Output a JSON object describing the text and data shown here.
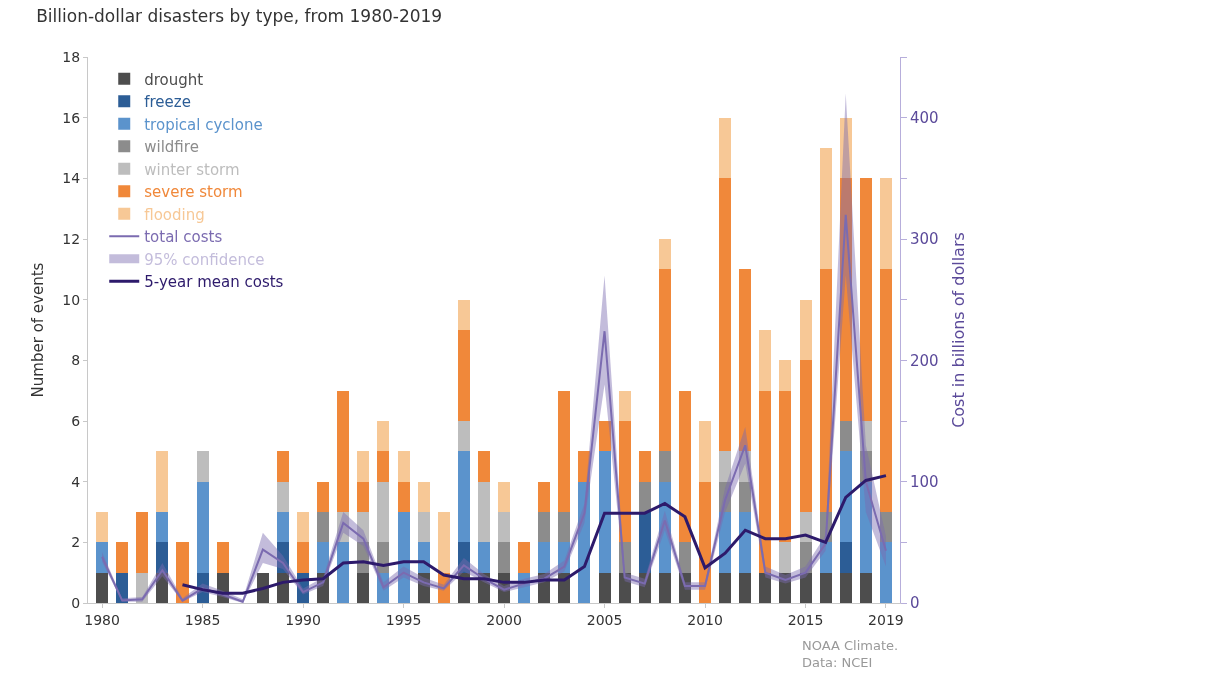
{
  "chart_data": {
    "type": "bar",
    "stacked": true,
    "title": "Billion-dollar disasters by type, from 1980-2019",
    "ylabel": "Number of events",
    "y2label": "Cost in billions of dollars",
    "x": [
      1980,
      1981,
      1982,
      1983,
      1984,
      1985,
      1986,
      1987,
      1988,
      1989,
      1990,
      1991,
      1992,
      1993,
      1994,
      1995,
      1996,
      1997,
      1998,
      1999,
      2000,
      2001,
      2002,
      2003,
      2004,
      2005,
      2006,
      2007,
      2008,
      2009,
      2010,
      2011,
      2012,
      2013,
      2014,
      2015,
      2016,
      2017,
      2018,
      2019
    ],
    "xlim": [
      1979.3,
      2019.7
    ],
    "xticks": [
      1980,
      1985,
      1990,
      1995,
      2000,
      2005,
      2010,
      2015,
      2019
    ],
    "ylim": [
      0,
      18
    ],
    "yticks": [
      0,
      2,
      4,
      6,
      8,
      10,
      12,
      14,
      16,
      18
    ],
    "y2lim": [
      0,
      450
    ],
    "y2ticks": [
      0,
      {
        "value": 50,
        "label": null
      },
      100,
      {
        "value": 150,
        "label": null
      },
      200,
      {
        "value": 250,
        "label": null
      },
      300,
      {
        "value": 350,
        "label": null
      },
      400,
      {
        "value": 450,
        "label": null
      }
    ],
    "series": [
      {
        "name": "drought",
        "color": "#4d4d4d",
        "values": [
          1,
          0,
          0,
          1,
          0,
          0,
          1,
          0,
          1,
          1,
          0,
          1,
          0,
          1,
          0,
          0,
          1,
          0,
          1,
          1,
          1,
          0,
          1,
          1,
          0,
          1,
          1,
          1,
          1,
          1,
          0,
          1,
          1,
          1,
          1,
          1,
          1,
          1,
          1,
          0
        ]
      },
      {
        "name": "freeze",
        "color": "#2c5d96",
        "values": [
          0,
          1,
          0,
          1,
          0,
          1,
          0,
          0,
          0,
          1,
          1,
          0,
          0,
          0,
          0,
          0,
          0,
          0,
          1,
          0,
          0,
          0,
          0,
          0,
          0,
          0,
          0,
          2,
          0,
          0,
          0,
          0,
          0,
          0,
          0,
          0,
          0,
          1,
          0,
          0
        ]
      },
      {
        "name": "tropical cyclone",
        "color": "#5b93cc",
        "values": [
          1,
          0,
          0,
          1,
          0,
          3,
          0,
          0,
          0,
          1,
          0,
          1,
          2,
          0,
          1,
          3,
          1,
          0,
          3,
          1,
          0,
          1,
          1,
          1,
          4,
          4,
          0,
          0,
          3,
          0,
          0,
          2,
          2,
          0,
          0,
          0,
          1,
          3,
          3,
          2
        ]
      },
      {
        "name": "wildfire",
        "color": "#8c8c8c",
        "values": [
          0,
          0,
          0,
          0,
          0,
          0,
          0,
          0,
          0,
          0,
          0,
          1,
          0,
          1,
          1,
          0,
          0,
          0,
          0,
          0,
          1,
          0,
          1,
          1,
          0,
          0,
          1,
          1,
          1,
          1,
          0,
          1,
          1,
          0,
          0,
          1,
          1,
          1,
          1,
          1
        ]
      },
      {
        "name": "winter storm",
        "color": "#bdbdbd",
        "values": [
          0,
          0,
          1,
          0,
          0,
          1,
          0,
          0,
          0,
          1,
          0,
          0,
          1,
          1,
          2,
          0,
          1,
          0,
          1,
          2,
          1,
          0,
          0,
          0,
          0,
          0,
          0,
          0,
          0,
          0,
          0,
          1,
          1,
          0,
          1,
          1,
          0,
          0,
          1,
          0
        ]
      },
      {
        "name": "severe storm",
        "color": "#f0883a",
        "values": [
          0,
          1,
          2,
          0,
          2,
          0,
          1,
          0,
          0,
          1,
          1,
          1,
          4,
          1,
          1,
          1,
          0,
          1,
          3,
          1,
          0,
          1,
          1,
          4,
          1,
          1,
          4,
          1,
          6,
          5,
          4,
          9,
          6,
          6,
          5,
          5,
          8,
          8,
          8,
          8
        ]
      },
      {
        "name": "flooding",
        "color": "#f7c896",
        "values": [
          1,
          0,
          0,
          2,
          0,
          0,
          0,
          0,
          0,
          0,
          1,
          0,
          0,
          1,
          1,
          1,
          1,
          2,
          1,
          0,
          1,
          0,
          0,
          0,
          0,
          0,
          1,
          0,
          1,
          0,
          2,
          2,
          0,
          2,
          1,
          2,
          4,
          2,
          0,
          3
        ]
      },
      {
        "name": "total costs",
        "type": "line",
        "axis": "y2",
        "color": "#7b6bb0",
        "values": [
          38,
          2,
          3,
          27,
          2,
          12,
          7,
          1,
          44,
          33,
          9,
          17,
          66,
          53,
          13,
          25,
          17,
          12,
          31,
          20,
          11,
          16,
          20,
          30,
          74,
          224,
          21,
          16,
          68,
          14,
          14,
          85,
          130,
          25,
          19,
          25,
          49,
          320,
          100,
          43
        ],
        "lower": [
          34,
          1,
          1,
          22,
          1,
          9,
          5,
          0,
          33,
          28,
          7,
          14,
          58,
          47,
          10,
          21,
          14,
          10,
          26,
          17,
          9,
          13,
          17,
          26,
          66,
          180,
          18,
          13,
          60,
          11,
          11,
          75,
          115,
          21,
          16,
          21,
          43,
          270,
          75,
          30
        ],
        "upper": [
          42,
          4,
          5,
          33,
          4,
          16,
          10,
          3,
          58,
          39,
          12,
          21,
          75,
          60,
          17,
          30,
          21,
          15,
          37,
          24,
          14,
          20,
          24,
          35,
          82,
          270,
          25,
          20,
          76,
          17,
          17,
          95,
          145,
          30,
          23,
          30,
          56,
          420,
          130,
          55
        ]
      },
      {
        "name": "5-year mean costs",
        "type": "line",
        "axis": "y2",
        "color": "#2d1a6b",
        "values": [
          null,
          null,
          null,
          null,
          15,
          11,
          8,
          8,
          12,
          17,
          19,
          20,
          33,
          34,
          31,
          34,
          34,
          23,
          20,
          20,
          17,
          17,
          19,
          19,
          30,
          74,
          74,
          74,
          82,
          71,
          29,
          41,
          60,
          53,
          53,
          56,
          50,
          87,
          101,
          105
        ]
      }
    ],
    "legend": "top left",
    "annotations": [
      "95% confidence",
      "NOAA Climate.\nData: NCEI"
    ]
  }
}
